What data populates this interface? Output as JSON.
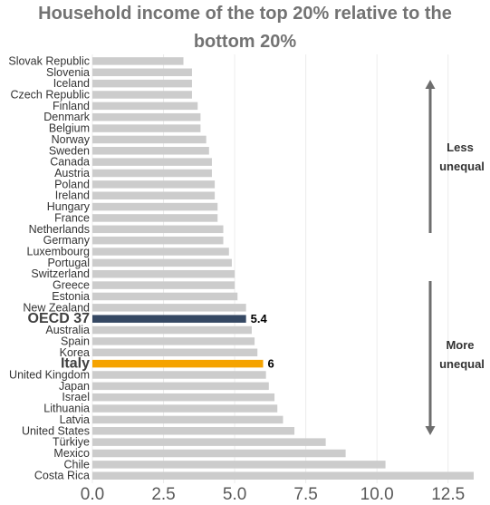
{
  "chart_data": {
    "type": "bar",
    "orientation": "horizontal",
    "title_line1": "Household income of the top 20% relative to the",
    "title_line2": "bottom 20%",
    "categories": [
      "Slovak Republic",
      "Slovenia",
      "Iceland",
      "Czech Republic",
      "Finland",
      "Denmark",
      "Belgium",
      "Norway",
      "Sweden",
      "Canada",
      "Austria",
      "Poland",
      "Ireland",
      "Hungary",
      "France",
      "Netherlands",
      "Germany",
      "Luxembourg",
      "Portugal",
      "Switzerland",
      "Greece",
      "Estonia",
      "New Zealand",
      "OECD 37",
      "Australia",
      "Spain",
      "Korea",
      "Italy",
      "United Kingdom",
      "Japan",
      "Israel",
      "Lithuania",
      "Latvia",
      "United States",
      "Türkiye",
      "Mexico",
      "Chile",
      "Costa Rica"
    ],
    "values": [
      3.2,
      3.5,
      3.5,
      3.5,
      3.7,
      3.8,
      3.8,
      4.0,
      4.1,
      4.2,
      4.2,
      4.3,
      4.3,
      4.4,
      4.4,
      4.6,
      4.6,
      4.8,
      4.9,
      5.0,
      5.0,
      5.1,
      5.4,
      5.4,
      5.6,
      5.7,
      5.8,
      6.0,
      6.1,
      6.2,
      6.4,
      6.5,
      6.7,
      7.1,
      8.2,
      8.9,
      10.3,
      13.4
    ],
    "highlights": {
      "OECD 37": {
        "color": "#354863",
        "label": "5.4"
      },
      "Italy": {
        "color": "#f5a300",
        "label": "6"
      }
    },
    "default_color": "#cccccc",
    "xlim": [
      0,
      13.4
    ],
    "xticks": [
      "0.0",
      "2.5",
      "5.0",
      "7.5",
      "10.0",
      "12.5"
    ],
    "xtick_values": [
      0,
      2.5,
      5,
      7.5,
      10,
      12.5
    ],
    "grid": true,
    "annotations": {
      "top_line1": "Less",
      "top_line2": "unequal",
      "bottom_line1": "More",
      "bottom_line2": "unequal"
    }
  }
}
